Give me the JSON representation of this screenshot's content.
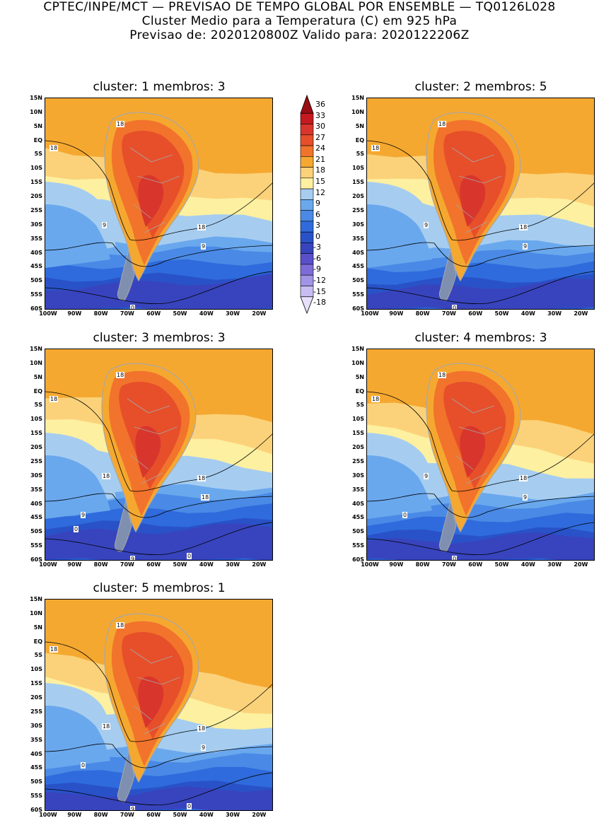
{
  "header": {
    "line1": "CPTEC/INPE/MCT — PREVISAO DE TEMPO GLOBAL POR ENSEMBLE — TQ0126L028",
    "line2": "Cluster Medio para a Temperatura (C) em 925 hPa",
    "line3": "Previsao de: 2020120800Z    Valido para: 2020122206Z"
  },
  "lat_labels": [
    "15N",
    "10N",
    "5N",
    "EQ",
    "5S",
    "10S",
    "15S",
    "20S",
    "25S",
    "30S",
    "35S",
    "40S",
    "45S",
    "50S",
    "55S",
    "60S"
  ],
  "lon_labels": [
    "100W",
    "90W",
    "80W",
    "70W",
    "60W",
    "50W",
    "40W",
    "30W",
    "20W"
  ],
  "colorbar": {
    "labels": [
      "36",
      "33",
      "30",
      "27",
      "24",
      "21",
      "18",
      "15",
      "12",
      "9",
      "6",
      "3",
      "0",
      "-3",
      "-6",
      "-9",
      "-12",
      "-15",
      "-18"
    ],
    "colors": [
      "#9a0d13",
      "#c41a1f",
      "#d8362c",
      "#e64f2a",
      "#f2732b",
      "#f5a830",
      "#fbd27a",
      "#fdf0a0",
      "#a6cdf0",
      "#6aa8ee",
      "#4a8ae6",
      "#2f6bdc",
      "#2952c8",
      "#3844bd",
      "#5a4fca",
      "#7d6cd8",
      "#a193e6",
      "#c7bdf2",
      "#e6e0fb"
    ]
  },
  "panels": [
    {
      "title": "cluster: 1   membros: 3",
      "contours": [
        "18",
        "18",
        "18",
        "9",
        "9",
        "0"
      ]
    },
    {
      "title": "cluster: 2   membros: 5",
      "contours": [
        "18",
        "18",
        "18",
        "9",
        "9",
        "0"
      ]
    },
    {
      "title": "cluster: 3   membros: 3",
      "contours": [
        "18",
        "18",
        "18",
        "18",
        "18",
        "9",
        "9",
        "0",
        "0"
      ]
    },
    {
      "title": "cluster: 4   membros: 3",
      "contours": [
        "18",
        "18",
        "18",
        "9",
        "9",
        "0",
        "0"
      ]
    },
    {
      "title": "cluster: 5   membros: 1",
      "contours": [
        "18",
        "18",
        "18",
        "18",
        "9",
        "9",
        "0",
        "0"
      ]
    }
  ]
}
